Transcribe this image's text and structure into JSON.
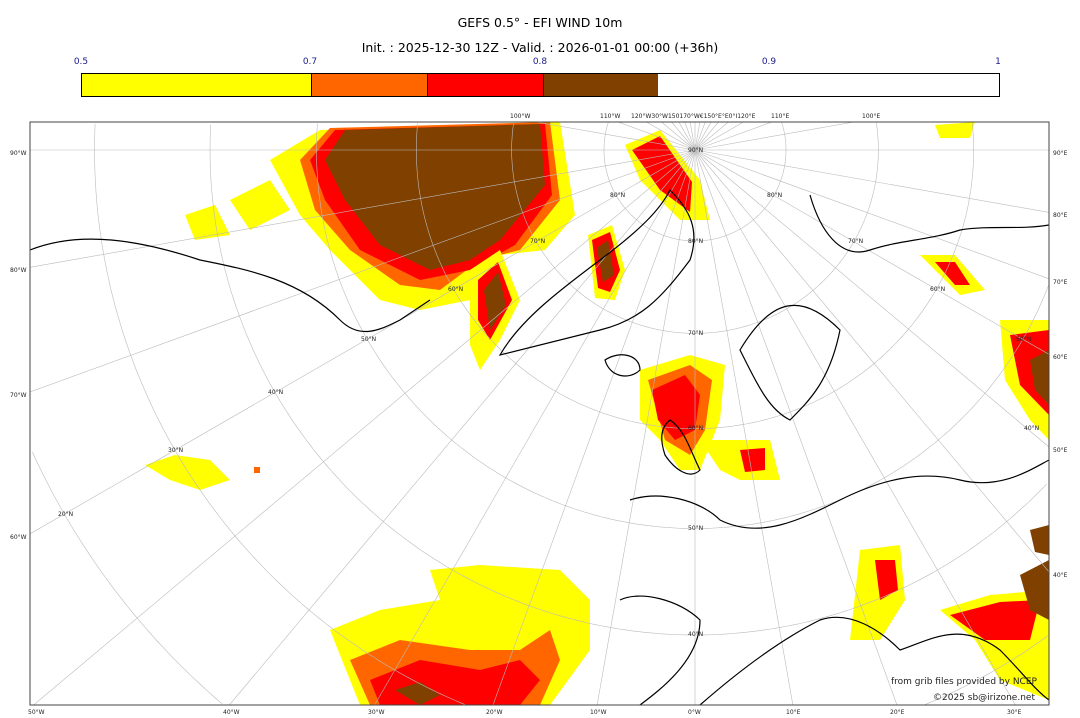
{
  "header": {
    "title": "GEFS 0.5° - EFI WIND 10m",
    "subtitle": "Init. : 2025-12-30 12Z - Valid. : 2026-01-01 00:00 (+36h)"
  },
  "colorbar": {
    "ticks": [
      "0.5",
      "0.7",
      "0.8",
      "0.9",
      "1"
    ],
    "bins": [
      {
        "from": 0.5,
        "to": 0.7,
        "color": "#ffff00"
      },
      {
        "from": 0.7,
        "to": 0.8,
        "color": "#ff6600"
      },
      {
        "from": 0.8,
        "to": 0.9,
        "color": "#ff0000"
      },
      {
        "from": 0.9,
        "to": 1.0,
        "color": "#804000"
      }
    ]
  },
  "map": {
    "projection": "north polar stereographic",
    "left_labels": [
      "90°W",
      "80°W",
      "70°W",
      "60°W"
    ],
    "right_labels": [
      "90°E",
      "80°E",
      "70°E",
      "60°E",
      "50°E",
      "40°E"
    ],
    "bottom_labels": [
      "50°W",
      "40°W",
      "30°W",
      "20°W",
      "10°W",
      "0°W",
      "10°E",
      "20°E",
      "30°E"
    ],
    "top_labels": [
      "100°W",
      "110°W",
      "120°W30°W150170°W€150°E°E0°I120°E",
      "110°E",
      "100°E"
    ],
    "lat_labels": [
      "90°N",
      "80°N",
      "70°N",
      "60°N",
      "50°N",
      "40°N",
      "30°N",
      "20°N",
      "40°N",
      "50°N",
      "60°N",
      "70°N",
      "80°N",
      "80°N",
      "70°N",
      "60°N",
      "50°N",
      "40°N"
    ]
  },
  "credits": {
    "source": "from grib files provided by NCEP",
    "copyright": "©2025 sb@irizone.net"
  }
}
